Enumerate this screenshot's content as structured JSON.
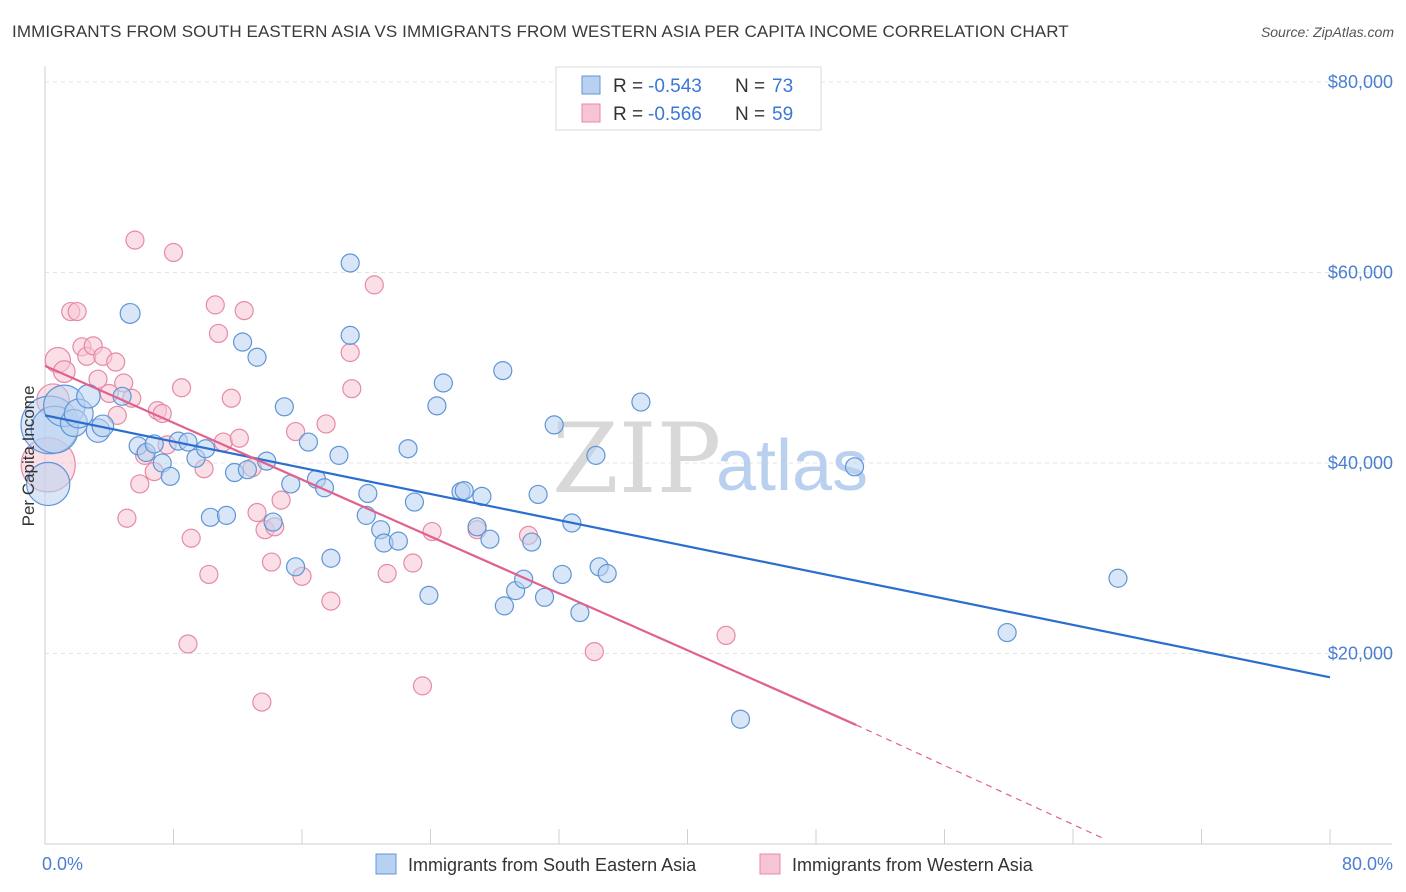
{
  "header": {
    "title": "IMMIGRANTS FROM SOUTH EASTERN ASIA VS IMMIGRANTS FROM WESTERN ASIA PER CAPITA INCOME CORRELATION CHART",
    "source": "Source: ZipAtlas.com"
  },
  "watermark": {
    "zip": "ZIP",
    "atlas": "atlas"
  },
  "colors": {
    "blue_fill": "#b8d1f1",
    "blue_stroke": "#5f95d6",
    "blue_line": "#2a6fcf",
    "pink_fill": "#f7c4d3",
    "pink_stroke": "#e58aa8",
    "pink_line": "#e0618e",
    "axis_label": "#4a7fd0"
  },
  "legend": {
    "rows": [
      {
        "r_label": "R =",
        "r_value": "-0.543",
        "n_label": "N =",
        "n_value": "73",
        "series": "blue"
      },
      {
        "r_label": "R =",
        "r_value": "-0.566",
        "n_label": "N =",
        "n_value": "59",
        "series": "pink"
      }
    ]
  },
  "chart_data": {
    "type": "scatter",
    "title": "IMMIGRANTS FROM SOUTH EASTERN ASIA VS IMMIGRANTS FROM WESTERN ASIA PER CAPITA INCOME CORRELATION CHART",
    "xlabel": "",
    "ylabel": "Per Capita Income",
    "xlim": [
      0,
      80
    ],
    "ylim": [
      0,
      80000
    ],
    "x_tick_labels": [
      "0.0%",
      "80.0%"
    ],
    "y_ticks": [
      20000,
      40000,
      60000,
      80000
    ],
    "y_tick_labels": [
      "$20,000",
      "$40,000",
      "$60,000",
      "$80,000"
    ],
    "grid": true,
    "legend_position": "top-center",
    "series": [
      {
        "name": "Immigrants from South Eastern Asia",
        "color": "blue",
        "r": -0.543,
        "n": 73,
        "trend": {
          "x0": 0,
          "y0": 45000,
          "x1": 80,
          "y1": 17500
        },
        "points": [
          [
            0.3,
            44000,
            3.2
          ],
          [
            0.2,
            37800,
            2.4
          ],
          [
            0.6,
            43500,
            2.6
          ],
          [
            1.2,
            46000,
            2.3
          ],
          [
            1.8,
            44200,
            1.5
          ],
          [
            2.1,
            45200,
            1.6
          ],
          [
            2.7,
            47000,
            1.3
          ],
          [
            3.3,
            43400,
            1.3
          ],
          [
            3.6,
            43900,
            1.2
          ],
          [
            4.8,
            47000,
            1.0
          ],
          [
            5.3,
            55700,
            1.1
          ],
          [
            5.8,
            41800,
            1.0
          ],
          [
            6.3,
            41100,
            1.0
          ],
          [
            6.8,
            42000,
            1.0
          ],
          [
            7.3,
            40000,
            1.0
          ],
          [
            7.8,
            38600,
            1.0
          ],
          [
            8.3,
            42300,
            1.0
          ],
          [
            8.9,
            42200,
            1.0
          ],
          [
            9.4,
            40500,
            1.0
          ],
          [
            10.0,
            41500,
            1.0
          ],
          [
            10.3,
            34300,
            1.0
          ],
          [
            11.3,
            34500,
            1.0
          ],
          [
            11.8,
            39000,
            1.0
          ],
          [
            12.3,
            52700,
            1.0
          ],
          [
            12.6,
            39300,
            1.0
          ],
          [
            13.2,
            51100,
            1.0
          ],
          [
            13.8,
            40200,
            1.0
          ],
          [
            14.2,
            33800,
            1.0
          ],
          [
            14.9,
            45900,
            1.0
          ],
          [
            15.3,
            37800,
            1.0
          ],
          [
            15.6,
            29100,
            1.0
          ],
          [
            16.4,
            42200,
            1.0
          ],
          [
            16.9,
            38300,
            1.0
          ],
          [
            17.4,
            37400,
            1.0
          ],
          [
            17.8,
            30000,
            1.0
          ],
          [
            18.3,
            40800,
            1.0
          ],
          [
            19.0,
            61000,
            1.0
          ],
          [
            19.0,
            53400,
            1.0
          ],
          [
            20.1,
            36800,
            1.0
          ],
          [
            20.0,
            34500,
            1.0
          ],
          [
            20.9,
            33000,
            1.0
          ],
          [
            21.1,
            31600,
            1.0
          ],
          [
            22.0,
            31800,
            1.0
          ],
          [
            22.6,
            41500,
            1.0
          ],
          [
            23.0,
            35900,
            1.0
          ],
          [
            23.9,
            26100,
            1.0
          ],
          [
            24.4,
            46000,
            1.0
          ],
          [
            24.8,
            48400,
            1.0
          ],
          [
            25.9,
            37000,
            1.0
          ],
          [
            26.1,
            37100,
            1.0
          ],
          [
            26.9,
            33300,
            1.0
          ],
          [
            27.2,
            36500,
            1.0
          ],
          [
            27.7,
            32000,
            1.0
          ],
          [
            28.5,
            49700,
            1.0
          ],
          [
            28.6,
            25000,
            1.0
          ],
          [
            29.3,
            26600,
            1.0
          ],
          [
            29.8,
            27800,
            1.0
          ],
          [
            30.3,
            31700,
            1.0
          ],
          [
            30.7,
            36700,
            1.0
          ],
          [
            31.1,
            25900,
            1.0
          ],
          [
            31.7,
            44000,
            1.0
          ],
          [
            32.2,
            28300,
            1.0
          ],
          [
            32.8,
            33700,
            1.0
          ],
          [
            33.3,
            24300,
            1.0
          ],
          [
            34.3,
            40800,
            1.0
          ],
          [
            34.5,
            29100,
            1.0
          ],
          [
            35.0,
            28400,
            1.0
          ],
          [
            37.1,
            46400,
            1.0
          ],
          [
            43.3,
            13100,
            1.0
          ],
          [
            50.4,
            39600,
            1.0
          ],
          [
            59.9,
            22200,
            1.0
          ],
          [
            66.8,
            27900,
            1.0
          ]
        ]
      },
      {
        "name": "Immigrants from Western Asia",
        "color": "pink",
        "r": -0.566,
        "n": 59,
        "trend": {
          "x0": 0,
          "y0": 50200,
          "x1": 50.5,
          "y1": 12500
        },
        "trend_dashed": {
          "x0": 50.5,
          "y0": 12500,
          "x1": 66,
          "y1": 500
        },
        "points": [
          [
            0.2,
            39800,
            3.0
          ],
          [
            0.5,
            46600,
            1.8
          ],
          [
            0.8,
            50800,
            1.4
          ],
          [
            1.2,
            49600,
            1.2
          ],
          [
            1.6,
            55900,
            1.0
          ],
          [
            2.0,
            55900,
            1.0
          ],
          [
            2.3,
            52200,
            1.0
          ],
          [
            2.6,
            51200,
            1.0
          ],
          [
            3.0,
            52300,
            1.0
          ],
          [
            3.3,
            48800,
            1.0
          ],
          [
            3.6,
            51200,
            1.0
          ],
          [
            4.0,
            47300,
            1.0
          ],
          [
            4.4,
            50600,
            1.0
          ],
          [
            4.5,
            45000,
            1.0
          ],
          [
            4.9,
            48400,
            1.0
          ],
          [
            5.1,
            34200,
            1.0
          ],
          [
            5.4,
            46800,
            1.0
          ],
          [
            5.6,
            63400,
            1.0
          ],
          [
            5.9,
            37800,
            1.0
          ],
          [
            6.2,
            40800,
            1.0
          ],
          [
            6.8,
            39100,
            1.0
          ],
          [
            7.0,
            45500,
            1.0
          ],
          [
            7.3,
            45200,
            1.0
          ],
          [
            7.6,
            41900,
            1.0
          ],
          [
            8.0,
            62100,
            1.0
          ],
          [
            8.5,
            47900,
            1.0
          ],
          [
            8.9,
            21000,
            1.0
          ],
          [
            9.1,
            32100,
            1.0
          ],
          [
            9.9,
            39400,
            1.0
          ],
          [
            10.2,
            28300,
            1.0
          ],
          [
            10.6,
            56600,
            1.0
          ],
          [
            10.8,
            53600,
            1.0
          ],
          [
            11.1,
            42200,
            1.0
          ],
          [
            11.6,
            46800,
            1.0
          ],
          [
            12.1,
            42600,
            1.0
          ],
          [
            12.4,
            56000,
            1.0
          ],
          [
            12.9,
            39500,
            1.0
          ],
          [
            13.2,
            34800,
            1.0
          ],
          [
            13.5,
            14900,
            1.0
          ],
          [
            13.7,
            33000,
            1.0
          ],
          [
            14.1,
            29600,
            1.0
          ],
          [
            14.3,
            33300,
            1.0
          ],
          [
            14.7,
            36100,
            1.0
          ],
          [
            15.6,
            43300,
            1.0
          ],
          [
            16.0,
            28100,
            1.0
          ],
          [
            17.5,
            44100,
            1.0
          ],
          [
            17.8,
            25500,
            1.0
          ],
          [
            19.0,
            51600,
            1.0
          ],
          [
            19.1,
            47800,
            1.0
          ],
          [
            20.5,
            58700,
            1.0
          ],
          [
            21.3,
            28400,
            1.0
          ],
          [
            22.9,
            29500,
            1.0
          ],
          [
            23.5,
            16600,
            1.0
          ],
          [
            24.1,
            32800,
            1.0
          ],
          [
            26.9,
            33000,
            1.0
          ],
          [
            30.1,
            32400,
            1.0
          ],
          [
            34.2,
            20200,
            1.0
          ],
          [
            42.4,
            21900,
            1.0
          ]
        ]
      }
    ]
  },
  "bottom_legend": [
    {
      "label": "Immigrants from South Eastern Asia",
      "series": "blue"
    },
    {
      "label": "Immigrants from Western Asia",
      "series": "pink"
    }
  ]
}
